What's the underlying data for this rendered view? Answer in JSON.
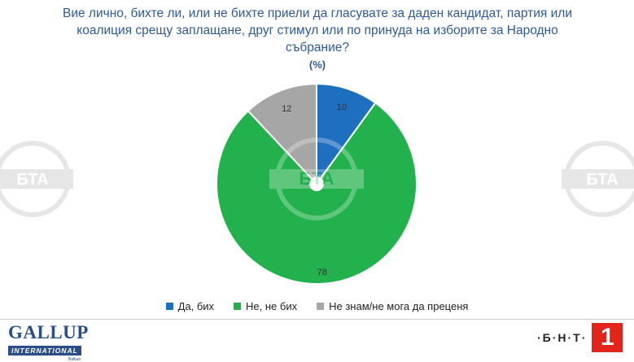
{
  "title_lines": [
    "Вие лично, бихте ли, или не бихте приели да гласувате за даден кандидат, партия или",
    "коалиция срещу заплащане, друг стимул или по принуда на изборите за Народно събрание?"
  ],
  "unit": "(%)",
  "chart_data": {
    "type": "pie",
    "categories": [
      "Да, бих",
      "Не, не бих",
      "Не знам/не мога да преценя"
    ],
    "values": [
      10,
      78,
      12
    ],
    "colors": [
      "#1f6fc0",
      "#22b14c",
      "#a6a6a6"
    ],
    "data_labels": [
      "10",
      "78",
      "12"
    ],
    "legend_position": "bottom"
  },
  "legend": [
    {
      "label": "Да, бих",
      "color": "#1f6fc0"
    },
    {
      "label": "Не, не бих",
      "color": "#22b14c"
    },
    {
      "label": "Не знам/не мога да преценя",
      "color": "#a6a6a6"
    }
  ],
  "watermark": "БТА",
  "logos": {
    "gallup": "GALLUP",
    "gallup_sub": "INTERNATIONAL",
    "gallup_tiny": "Balkan",
    "bnt": "·Б·Н·Т·",
    "bnt_number": "1"
  }
}
